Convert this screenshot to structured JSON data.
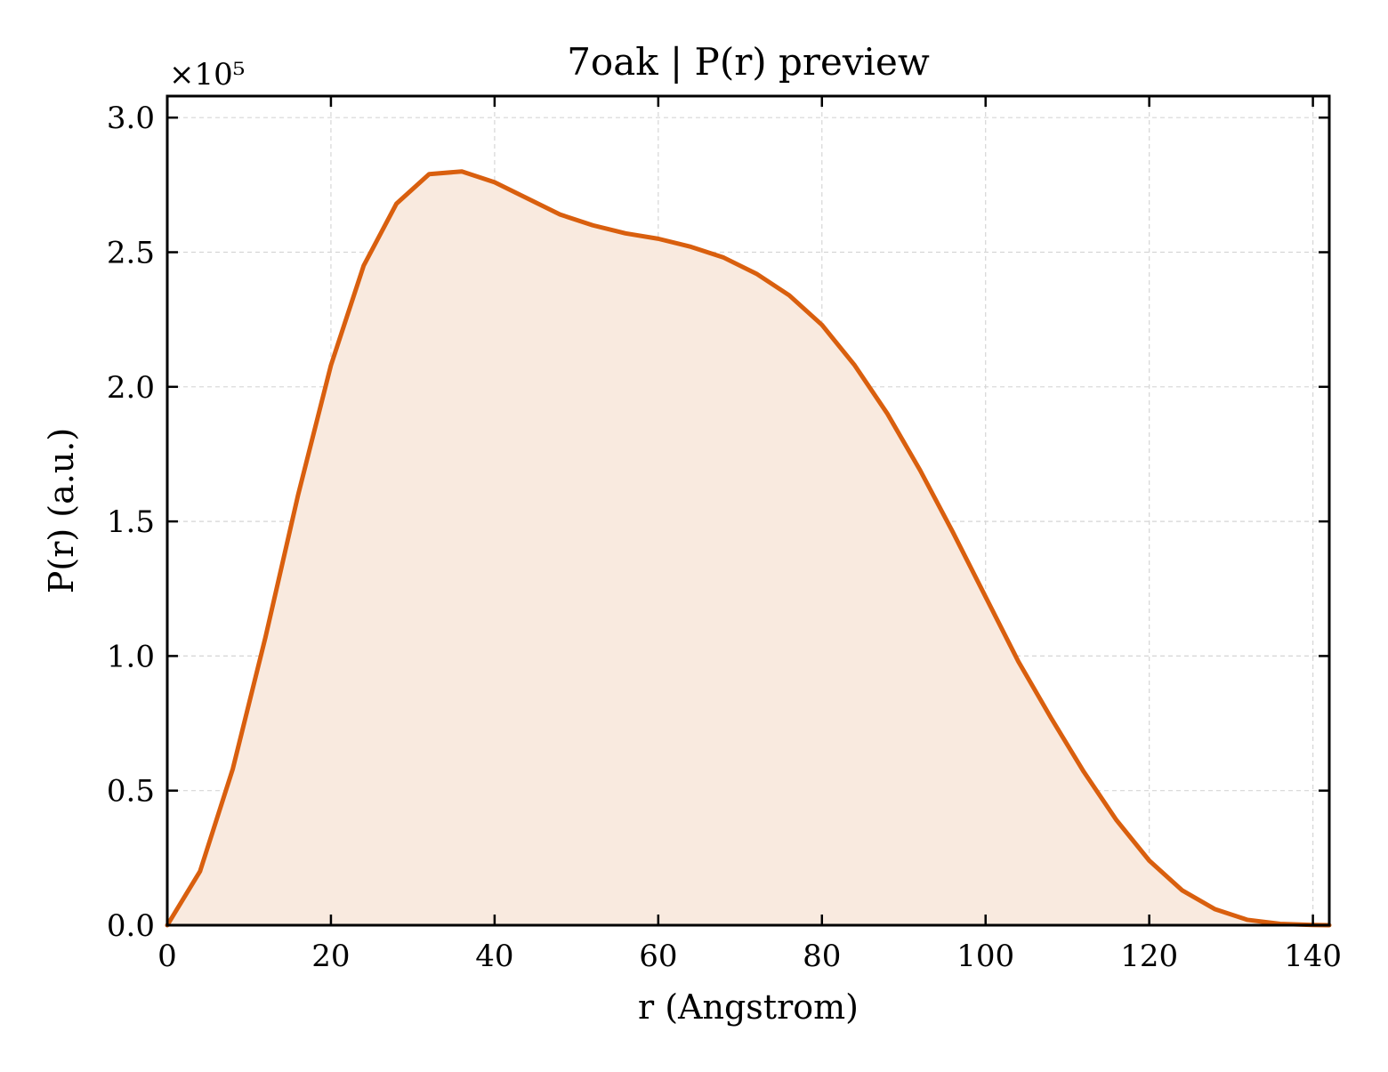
{
  "chart_data": {
    "type": "area",
    "title": "7oak | P(r) preview",
    "xlabel": "r (Angstrom)",
    "ylabel": "P(r) (a.u.)",
    "y_offset_label": "×10⁵",
    "xlim": [
      0,
      142
    ],
    "ylim": [
      0,
      3.08
    ],
    "y_scale_note": "values in units of 1e5",
    "xticks": [
      0,
      20,
      40,
      60,
      80,
      100,
      120,
      140
    ],
    "xtick_labels": [
      "0",
      "20",
      "40",
      "60",
      "80",
      "100",
      "120",
      "140"
    ],
    "yticks": [
      0.0,
      0.5,
      1.0,
      1.5,
      2.0,
      2.5,
      3.0
    ],
    "ytick_labels": [
      "0.0",
      "0.5",
      "1.0",
      "1.5",
      "2.0",
      "2.5",
      "3.0"
    ],
    "grid": true,
    "series": [
      {
        "x": [
          0,
          4,
          8,
          12,
          16,
          20,
          24,
          28,
          32,
          36,
          40,
          44,
          48,
          52,
          56,
          60,
          64,
          68,
          72,
          76,
          80,
          84,
          88,
          92,
          96,
          100,
          104,
          108,
          112,
          116,
          120,
          124,
          128,
          132,
          136,
          140,
          142
        ],
        "y": [
          0.0,
          0.2,
          0.58,
          1.07,
          1.6,
          2.08,
          2.45,
          2.68,
          2.79,
          2.8,
          2.76,
          2.7,
          2.64,
          2.6,
          2.57,
          2.55,
          2.52,
          2.48,
          2.42,
          2.34,
          2.23,
          2.08,
          1.9,
          1.69,
          1.46,
          1.22,
          0.98,
          0.77,
          0.57,
          0.39,
          0.24,
          0.13,
          0.06,
          0.02,
          0.005,
          0.001,
          0.0
        ],
        "color": "#d95f0e",
        "fill_color": "#f9eadf"
      }
    ]
  }
}
